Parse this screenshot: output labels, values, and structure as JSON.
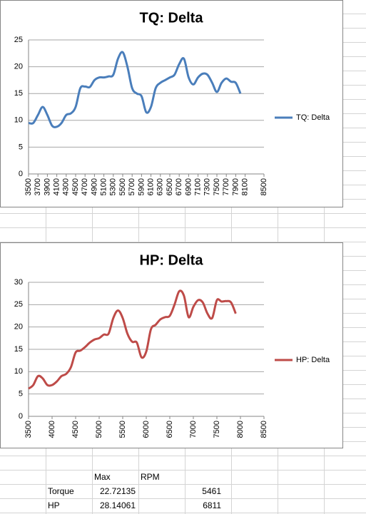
{
  "chart_data": [
    {
      "type": "line",
      "title": "TQ: Delta",
      "x": [
        3500,
        3600,
        3700,
        3800,
        3900,
        4000,
        4100,
        4200,
        4300,
        4400,
        4500,
        4600,
        4700,
        4800,
        4900,
        5000,
        5100,
        5200,
        5300,
        5400,
        5500,
        5600,
        5700,
        5800,
        5900,
        6000,
        6100,
        6200,
        6300,
        6400,
        6500,
        6600,
        6700,
        6800,
        6900,
        7000,
        7100,
        7200,
        7300,
        7400,
        7500,
        7600,
        7700,
        7800,
        7900,
        8000
      ],
      "series": [
        {
          "name": "TQ: Delta",
          "color": "#4a7ebb",
          "values": [
            9.5,
            9.5,
            11,
            12.5,
            11,
            9,
            8.8,
            9.5,
            11,
            11.3,
            12.5,
            16,
            16.3,
            16.2,
            17.5,
            18,
            18,
            18.2,
            18.5,
            21.5,
            22.7,
            20,
            16,
            15,
            14.5,
            11.5,
            12.5,
            16,
            17,
            17.5,
            18,
            18.5,
            20.5,
            21.5,
            18,
            16.7,
            18,
            18.7,
            18.5,
            17,
            15.3,
            17,
            17.8,
            17.2,
            17,
            15
          ]
        }
      ],
      "xlim": [
        3500,
        8500
      ],
      "xticks": [
        3500,
        3700,
        3900,
        4100,
        4300,
        4500,
        4700,
        4900,
        5100,
        5300,
        5500,
        5700,
        5900,
        6100,
        6300,
        6500,
        6700,
        6900,
        7100,
        7300,
        7500,
        7700,
        7900,
        8100,
        8500
      ],
      "ylim": [
        0,
        25
      ],
      "yticks": [
        0,
        5,
        10,
        15,
        20,
        25
      ],
      "grid": true,
      "legend": "right"
    },
    {
      "type": "line",
      "title": "HP: Delta",
      "x": [
        3500,
        3600,
        3700,
        3800,
        3900,
        4000,
        4100,
        4200,
        4300,
        4400,
        4500,
        4600,
        4700,
        4800,
        4900,
        5000,
        5100,
        5200,
        5300,
        5400,
        5500,
        5600,
        5700,
        5800,
        5900,
        6000,
        6100,
        6200,
        6300,
        6400,
        6500,
        6600,
        6700,
        6800,
        6900,
        7000,
        7100,
        7200,
        7300,
        7400,
        7500,
        7600,
        7700,
        7800,
        7900
      ],
      "series": [
        {
          "name": "HP: Delta",
          "color": "#be4b48",
          "values": [
            6.2,
            7,
            9,
            8.5,
            7,
            7,
            7.8,
            9,
            9.5,
            11,
            14.3,
            14.7,
            15.5,
            16.5,
            17.2,
            17.5,
            18.3,
            18.5,
            22,
            23.7,
            22,
            18.5,
            16.7,
            16.5,
            13.2,
            14.5,
            19.5,
            20.5,
            21.7,
            22.2,
            22.5,
            25,
            28,
            27,
            22.2,
            24.5,
            26,
            25.5,
            23,
            22,
            26,
            25.7,
            25.8,
            25.5,
            23
          ]
        }
      ],
      "xlim": [
        3500,
        8500
      ],
      "xticks": [
        3500,
        4000,
        4500,
        5000,
        5500,
        6000,
        6500,
        7000,
        7500,
        8000,
        8500
      ],
      "ylim": [
        0,
        30
      ],
      "yticks": [
        0,
        5,
        10,
        15,
        20,
        25,
        30
      ],
      "grid": true,
      "legend": "right"
    }
  ],
  "table": {
    "header": [
      "Max",
      "RPM"
    ],
    "rows": [
      [
        "Torque",
        22.72135,
        5461
      ],
      [
        "HP",
        28.14061,
        6811
      ]
    ]
  }
}
